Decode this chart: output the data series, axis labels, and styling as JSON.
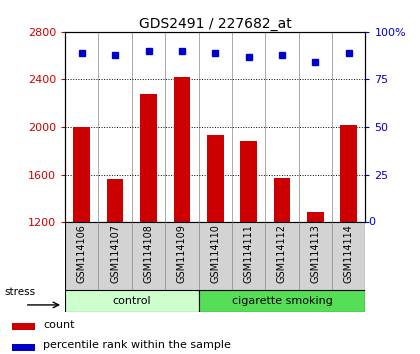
{
  "title": "GDS2491 / 227682_at",
  "samples": [
    "GSM114106",
    "GSM114107",
    "GSM114108",
    "GSM114109",
    "GSM114110",
    "GSM114111",
    "GSM114112",
    "GSM114113",
    "GSM114114"
  ],
  "counts": [
    2000,
    1560,
    2280,
    2420,
    1930,
    1880,
    1570,
    1290,
    2020
  ],
  "percentile_ranks": [
    89,
    88,
    90,
    90,
    89,
    87,
    88,
    84,
    89
  ],
  "groups": [
    {
      "label": "control",
      "start": 0,
      "end": 4,
      "color": "#ccffcc"
    },
    {
      "label": "cigarette smoking",
      "start": 4,
      "end": 9,
      "color": "#55dd55"
    }
  ],
  "ymin": 1200,
  "ymax": 2800,
  "yticks": [
    1200,
    1600,
    2000,
    2400,
    2800
  ],
  "right_yticks": [
    0,
    25,
    50,
    75,
    100
  ],
  "bar_color": "#cc0000",
  "dot_color": "#0000cc",
  "bar_width": 0.5,
  "stress_label": "stress",
  "figsize": [
    4.2,
    3.54
  ],
  "dpi": 100
}
